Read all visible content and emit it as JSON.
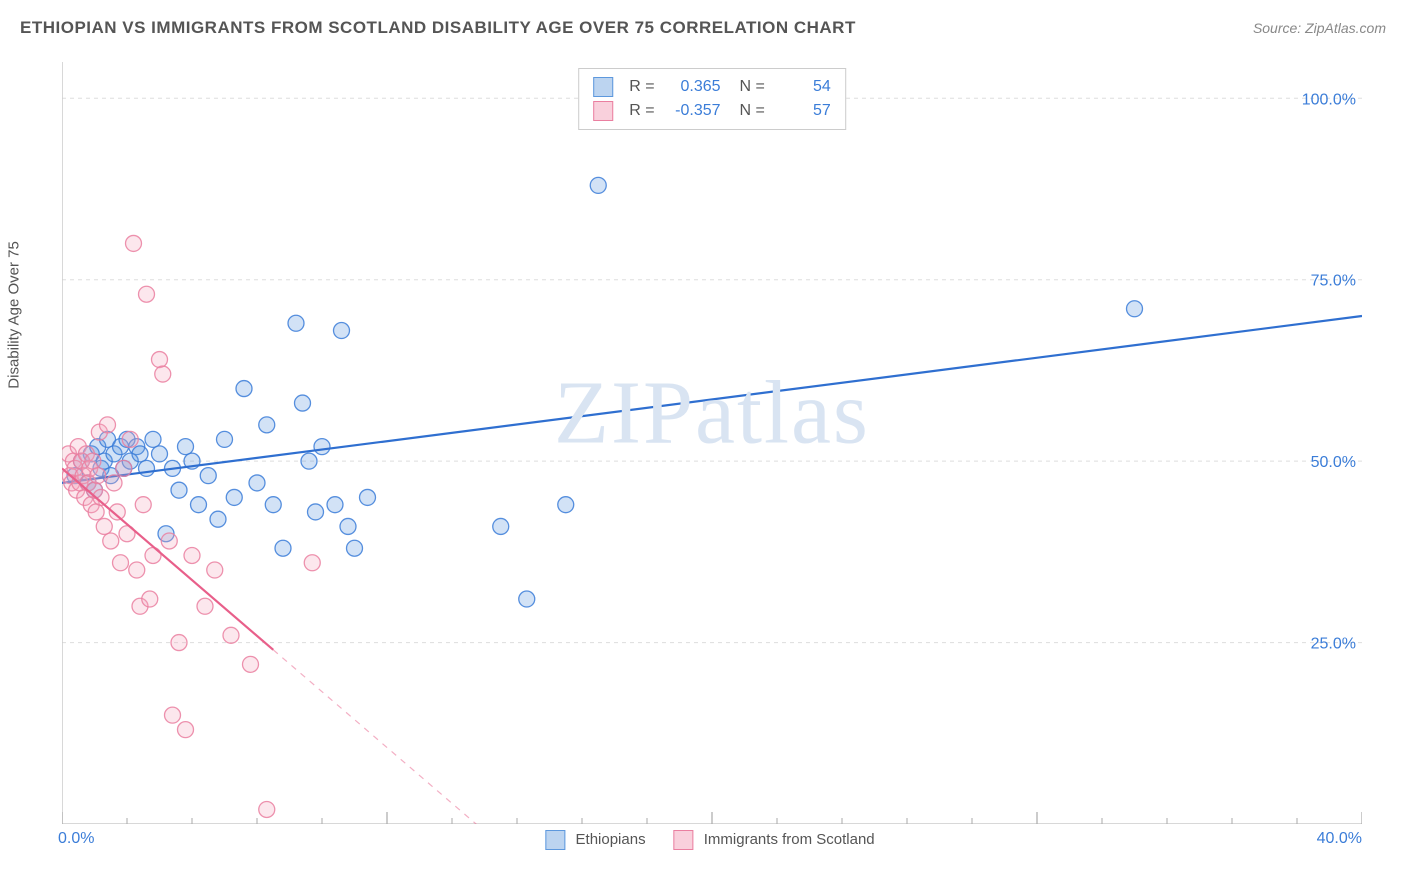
{
  "header": {
    "title": "ETHIOPIAN VS IMMIGRANTS FROM SCOTLAND DISABILITY AGE OVER 75 CORRELATION CHART",
    "source": "Source: ZipAtlas.com"
  },
  "ylabel": "Disability Age Over 75",
  "watermark": "ZIPatlas",
  "chart": {
    "type": "scatter",
    "background_color": "#ffffff",
    "grid_color": "#dddddd",
    "axis_color": "#cccccc",
    "tick_color": "#aaaaaa",
    "xlim": [
      0,
      40
    ],
    "ylim": [
      0,
      105
    ],
    "xticks_major": [
      0,
      10,
      20,
      30,
      40
    ],
    "xticks_minor_step": 2,
    "yticks": [
      25,
      50,
      75,
      100
    ],
    "xtick_labels": {
      "0": "0.0%",
      "40": "40.0%"
    },
    "ytick_labels": {
      "25": "25.0%",
      "50": "50.0%",
      "75": "75.0%",
      "100": "100.0%"
    },
    "label_color": "#3b7dd8",
    "label_fontsize": 16,
    "marker_radius": 8,
    "marker_fill_opacity": 0.28,
    "marker_stroke_opacity": 0.85,
    "line_width": 2.2,
    "series": [
      {
        "name": "Ethiopians",
        "color": "#5d98dd",
        "stroke": "#3b7dd8",
        "line_color": "#2f6fd0",
        "R": "0.365",
        "N": "54",
        "regression": {
          "x1": 0,
          "y1": 47,
          "x2": 40,
          "y2": 70,
          "dash_after_x": 40
        },
        "points": [
          [
            0.4,
            48
          ],
          [
            0.6,
            50
          ],
          [
            0.8,
            47
          ],
          [
            0.9,
            51
          ],
          [
            1.0,
            46
          ],
          [
            1.1,
            52
          ],
          [
            1.2,
            49
          ],
          [
            1.3,
            50
          ],
          [
            1.4,
            53
          ],
          [
            1.5,
            48
          ],
          [
            1.6,
            51
          ],
          [
            1.8,
            52
          ],
          [
            1.9,
            49
          ],
          [
            2.0,
            53
          ],
          [
            2.1,
            50
          ],
          [
            2.3,
            52
          ],
          [
            2.4,
            51
          ],
          [
            2.6,
            49
          ],
          [
            2.8,
            53
          ],
          [
            3.0,
            51
          ],
          [
            3.2,
            40
          ],
          [
            3.4,
            49
          ],
          [
            3.6,
            46
          ],
          [
            3.8,
            52
          ],
          [
            4.0,
            50
          ],
          [
            4.2,
            44
          ],
          [
            4.5,
            48
          ],
          [
            4.8,
            42
          ],
          [
            5.0,
            53
          ],
          [
            5.3,
            45
          ],
          [
            5.6,
            60
          ],
          [
            6.0,
            47
          ],
          [
            6.3,
            55
          ],
          [
            6.5,
            44
          ],
          [
            6.8,
            38
          ],
          [
            7.2,
            69
          ],
          [
            7.4,
            58
          ],
          [
            7.6,
            50
          ],
          [
            7.8,
            43
          ],
          [
            8.0,
            52
          ],
          [
            8.4,
            44
          ],
          [
            8.6,
            68
          ],
          [
            8.8,
            41
          ],
          [
            9.0,
            38
          ],
          [
            9.4,
            45
          ],
          [
            13.5,
            41
          ],
          [
            14.3,
            31
          ],
          [
            15.5,
            44
          ],
          [
            16.5,
            88
          ],
          [
            33.0,
            71
          ]
        ]
      },
      {
        "name": "Immigrants from Scotland",
        "color": "#f3a9bd",
        "stroke": "#ea7fa0",
        "line_color": "#e85f8a",
        "R": "-0.357",
        "N": "57",
        "regression": {
          "x1": 0,
          "y1": 49,
          "x2": 6.5,
          "y2": 24,
          "dash_after_x": 6.5,
          "dash_to_x": 13,
          "dash_to_y": -1
        },
        "points": [
          [
            0.2,
            51
          ],
          [
            0.25,
            48
          ],
          [
            0.3,
            47
          ],
          [
            0.35,
            50
          ],
          [
            0.4,
            49
          ],
          [
            0.45,
            46
          ],
          [
            0.5,
            52
          ],
          [
            0.55,
            47
          ],
          [
            0.6,
            50
          ],
          [
            0.65,
            48
          ],
          [
            0.7,
            45
          ],
          [
            0.75,
            51
          ],
          [
            0.8,
            47
          ],
          [
            0.85,
            49
          ],
          [
            0.9,
            44
          ],
          [
            0.95,
            50
          ],
          [
            1.0,
            46
          ],
          [
            1.05,
            43
          ],
          [
            1.1,
            48
          ],
          [
            1.15,
            54
          ],
          [
            1.2,
            45
          ],
          [
            1.3,
            41
          ],
          [
            1.4,
            55
          ],
          [
            1.5,
            39
          ],
          [
            1.6,
            47
          ],
          [
            1.7,
            43
          ],
          [
            1.8,
            36
          ],
          [
            1.9,
            49
          ],
          [
            2.0,
            40
          ],
          [
            2.1,
            53
          ],
          [
            2.2,
            80
          ],
          [
            2.3,
            35
          ],
          [
            2.4,
            30
          ],
          [
            2.5,
            44
          ],
          [
            2.6,
            73
          ],
          [
            2.7,
            31
          ],
          [
            2.8,
            37
          ],
          [
            3.0,
            64
          ],
          [
            3.1,
            62
          ],
          [
            3.3,
            39
          ],
          [
            3.4,
            15
          ],
          [
            3.6,
            25
          ],
          [
            3.8,
            13
          ],
          [
            4.0,
            37
          ],
          [
            4.4,
            30
          ],
          [
            4.7,
            35
          ],
          [
            5.2,
            26
          ],
          [
            5.8,
            22
          ],
          [
            6.3,
            2
          ],
          [
            7.7,
            36
          ]
        ]
      }
    ]
  },
  "legend_bottom": [
    {
      "label": "Ethiopians",
      "fill": "#bcd4f0",
      "stroke": "#5d98dd"
    },
    {
      "label": "Immigrants from Scotland",
      "fill": "#f9d0dc",
      "stroke": "#ea7fa0"
    }
  ],
  "legend_box": {
    "rows": [
      {
        "fill": "#bcd4f0",
        "stroke": "#5d98dd",
        "R": "0.365",
        "N": "54"
      },
      {
        "fill": "#f9d0dc",
        "stroke": "#ea7fa0",
        "R": "-0.357",
        "N": "57"
      }
    ]
  }
}
